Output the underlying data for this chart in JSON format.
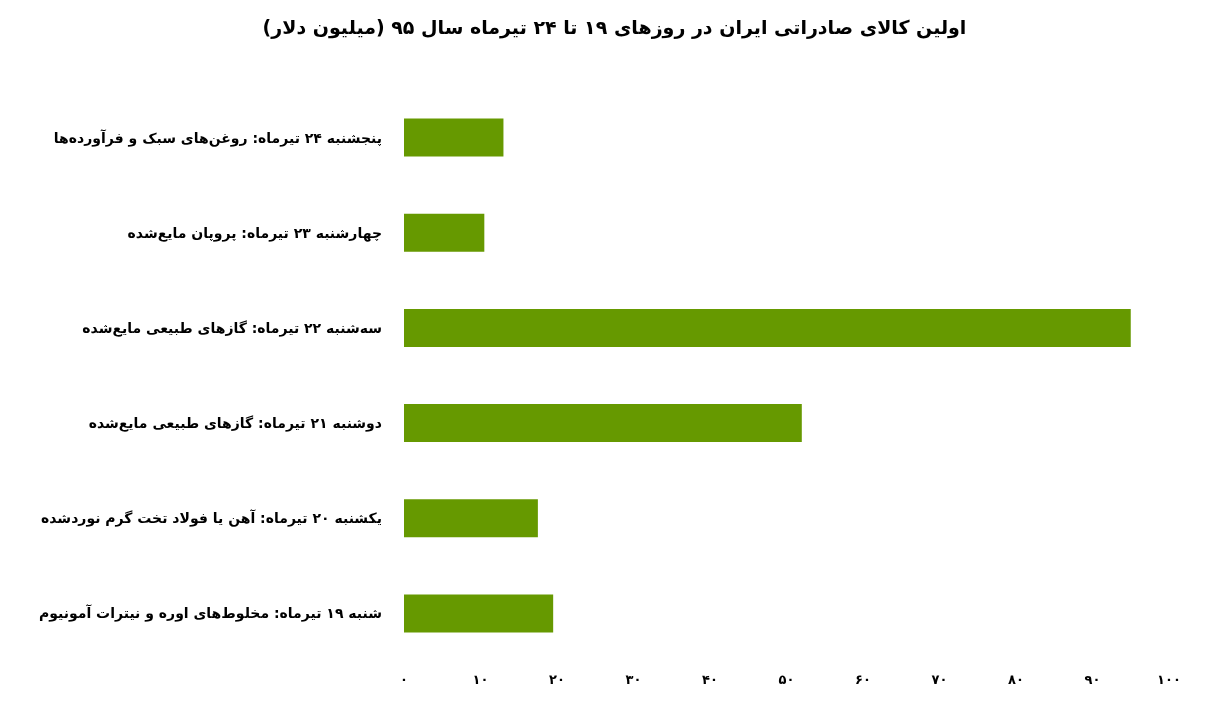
{
  "chart_data": {
    "type": "bar",
    "orientation": "horizontal",
    "title": "اولین کالای صادراتی ایران در روزهای ۱۹ تا ۲۴ تیرماه سال ۹۵ (میلیون دلار)",
    "categories": [
      "پنجشنبه ۲۴ تیرماه: روغن‌های سبک و فرآورده‌ها",
      "چهارشنبه ۲۳ تیرماه: پروپان مایع‌شده",
      "سه‌شنبه ۲۲ تیرماه: گازهای طبیعی مایع‌شده",
      "دوشنبه ۲۱ تیرماه: گازهای طبیعی مایع‌شده",
      "یکشنبه ۲۰ تیرماه: آهن یا فولاد تخت گرم نوردشده",
      "شنبه ۱۹ تیرماه: مخلوط‌های اوره و نیترات آمونیوم"
    ],
    "values": [
      13,
      10.5,
      95,
      52,
      17.5,
      19.5
    ],
    "color": "#669900",
    "xlim": [
      0,
      100
    ],
    "xticks": [
      {
        "value": 0,
        "label": "۰"
      },
      {
        "value": 10,
        "label": "۱۰"
      },
      {
        "value": 20,
        "label": "۲۰"
      },
      {
        "value": 30,
        "label": "۳۰"
      },
      {
        "value": 40,
        "label": "۴۰"
      },
      {
        "value": 50,
        "label": "۵۰"
      },
      {
        "value": 60,
        "label": "۶۰"
      },
      {
        "value": 70,
        "label": "۷۰"
      },
      {
        "value": 80,
        "label": "۸۰"
      },
      {
        "value": 90,
        "label": "۹۰"
      },
      {
        "value": 100,
        "label": "۱۰۰"
      }
    ],
    "grid": false
  }
}
